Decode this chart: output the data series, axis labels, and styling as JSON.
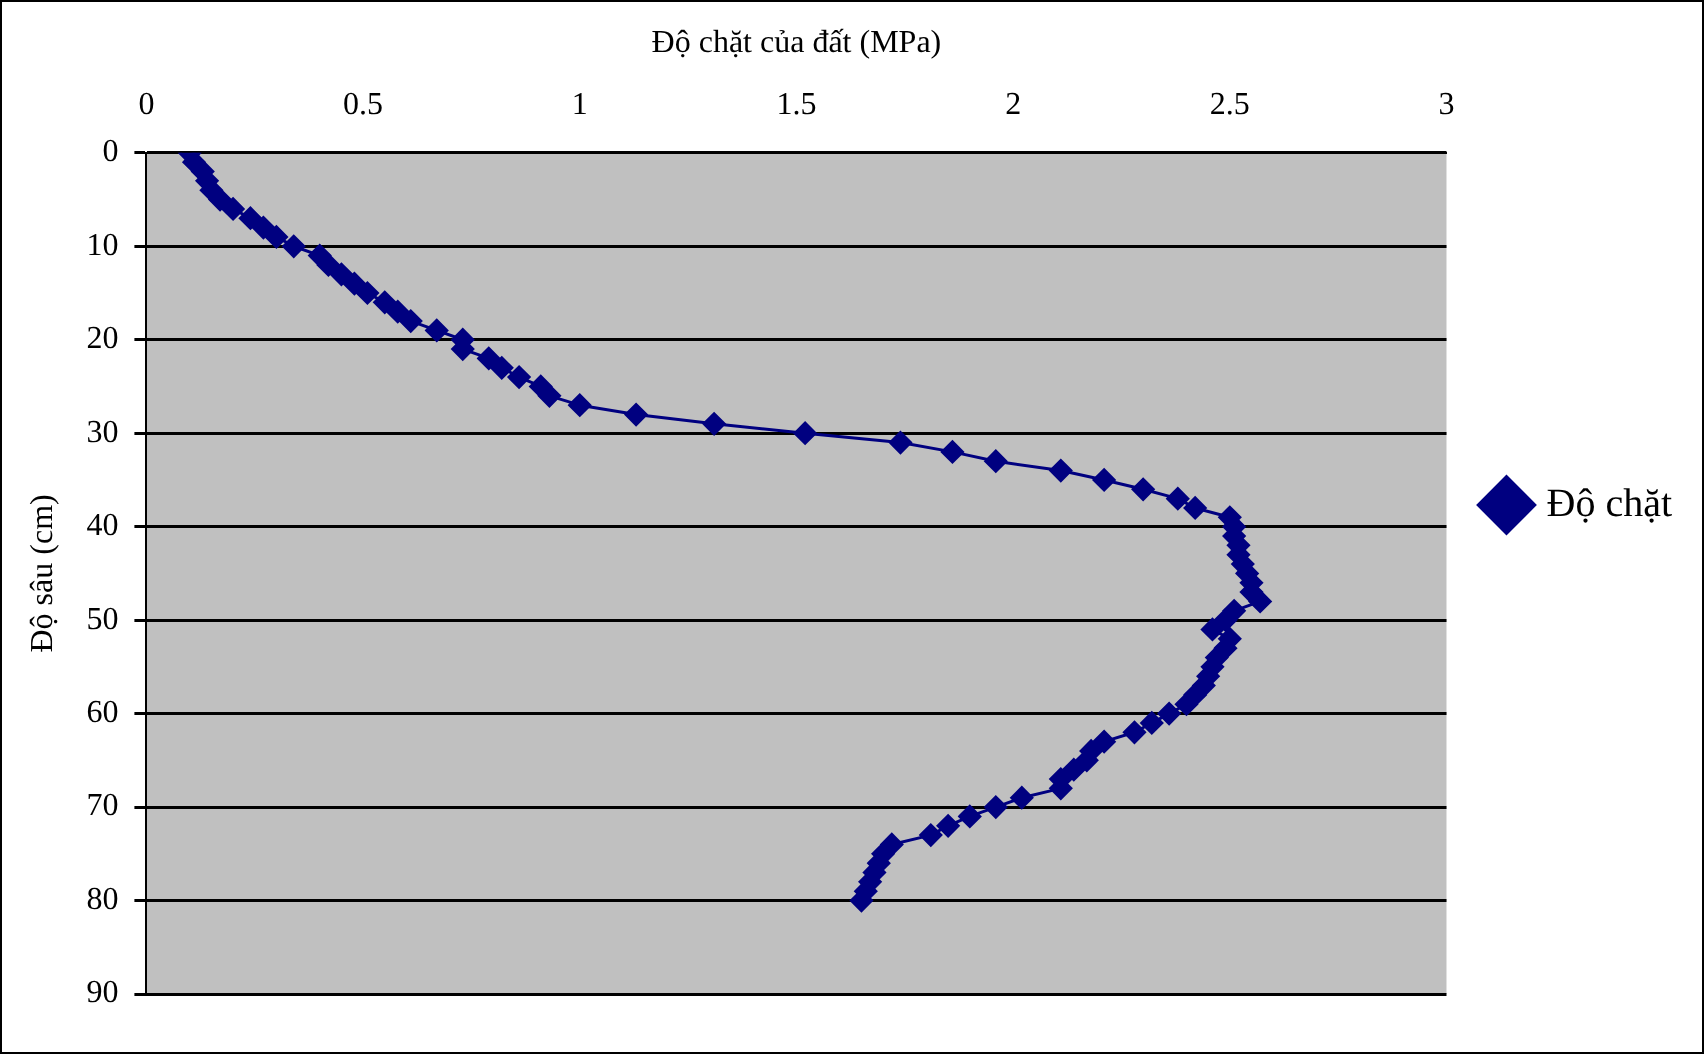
{
  "chart_data": {
    "type": "line",
    "xlabel": "Độ chặt của đất (MPa)",
    "ylabel": "Độ sâu (cm)",
    "x": [
      0.1,
      0.11,
      0.13,
      0.14,
      0.15,
      0.17,
      0.2,
      0.24,
      0.27,
      0.3,
      0.34,
      0.4,
      0.42,
      0.45,
      0.48,
      0.51,
      0.55,
      0.58,
      0.61,
      0.67,
      0.73,
      0.73,
      0.79,
      0.82,
      0.86,
      0.91,
      0.93,
      1.0,
      1.13,
      1.31,
      1.52,
      1.74,
      1.86,
      1.96,
      2.11,
      2.21,
      2.3,
      2.38,
      2.42,
      2.5,
      2.51,
      2.51,
      2.52,
      2.52,
      2.53,
      2.54,
      2.55,
      2.55,
      2.57,
      2.51,
      2.49,
      2.46,
      2.5,
      2.49,
      2.47,
      2.46,
      2.45,
      2.44,
      2.42,
      2.4,
      2.36,
      2.32,
      2.28,
      2.21,
      2.18,
      2.17,
      2.14,
      2.11,
      2.11,
      2.02,
      1.96,
      1.9,
      1.85,
      1.81,
      1.72,
      1.7,
      1.69,
      1.68,
      1.67,
      1.66,
      1.65
    ],
    "series": [
      {
        "name": "Độ chặt",
        "color": "#000080",
        "values": [
          0,
          1,
          2,
          3,
          4,
          5,
          6,
          7,
          8,
          9,
          10,
          11,
          12,
          13,
          14,
          15,
          16,
          17,
          18,
          19,
          20,
          21,
          22,
          23,
          24,
          25,
          26,
          27,
          28,
          29,
          30,
          31,
          32,
          33,
          34,
          35,
          36,
          37,
          38,
          39,
          40,
          41,
          42,
          43,
          44,
          45,
          46,
          47,
          48,
          49,
          50,
          51,
          52,
          53,
          54,
          55,
          56,
          57,
          58,
          59,
          60,
          61,
          62,
          63,
          64,
          65,
          66,
          67,
          68,
          69,
          70,
          71,
          72,
          73,
          74,
          75,
          76,
          77,
          78,
          79,
          80
        ]
      }
    ],
    "xlim": [
      0,
      3
    ],
    "xticks": [
      0,
      0.5,
      1,
      1.5,
      2,
      2.5,
      3
    ],
    "ylim": [
      90,
      0
    ],
    "yticks": [
      0,
      10,
      20,
      30,
      40,
      50,
      60,
      70,
      80,
      90
    ],
    "grid": "y",
    "legend": "right",
    "marker": "diamond",
    "line_style": "solid"
  }
}
